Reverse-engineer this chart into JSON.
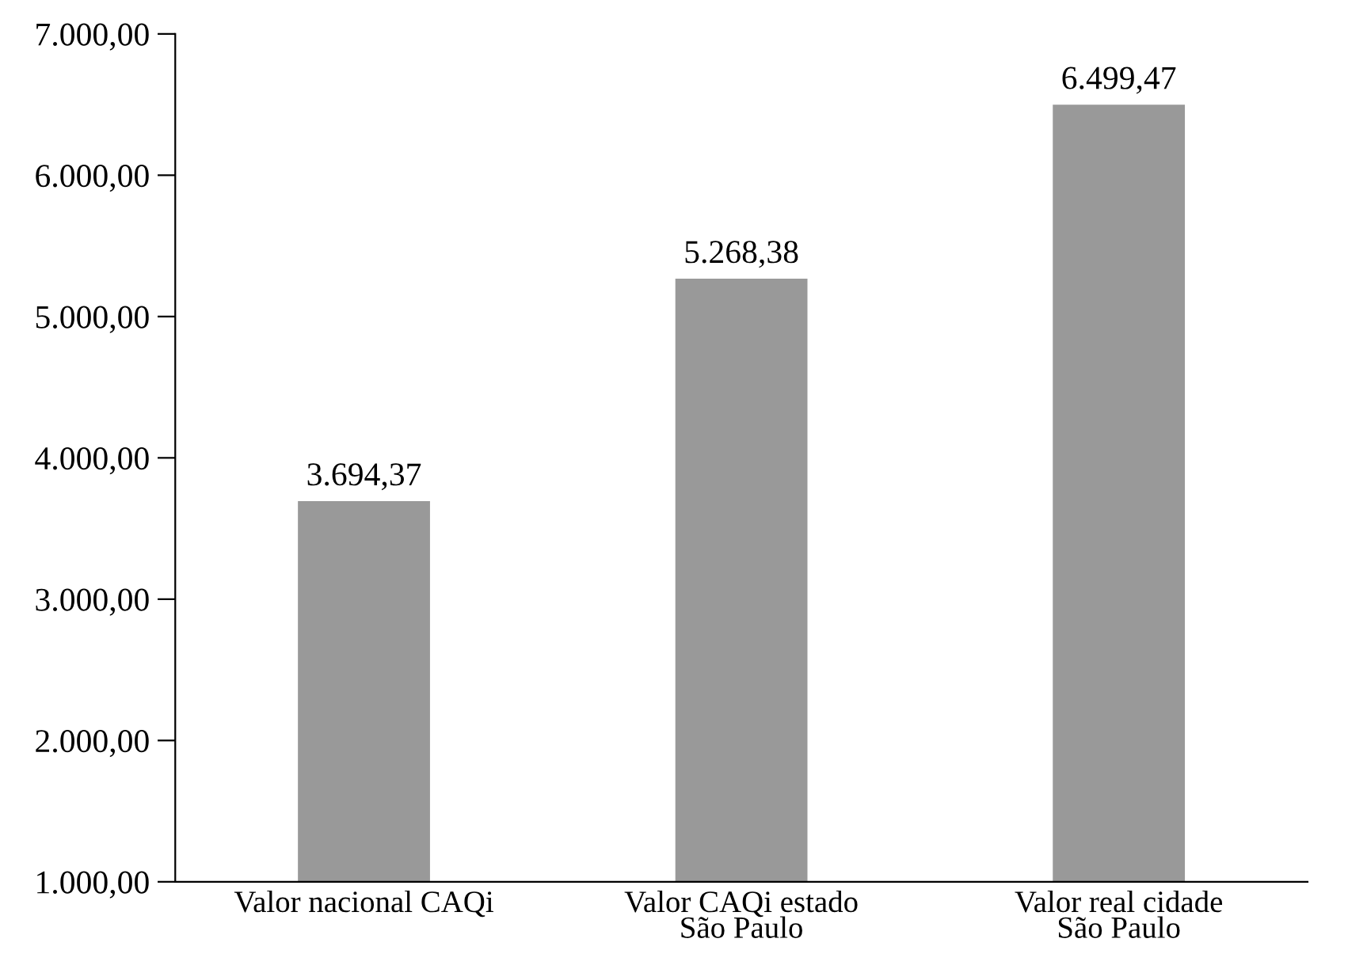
{
  "chart_data": {
    "type": "bar",
    "categories": [
      "Valor nacional CAQi",
      "Valor CAQi estado\nSão Paulo",
      "Valor real cidade\nSão Paulo"
    ],
    "values": [
      3694.37,
      5268.38,
      6499.47
    ],
    "color": "#999999",
    "value_labels": [
      "3.694,37",
      "5.268,38",
      "6.499,47"
    ],
    "ylim": [
      1000,
      7000
    ],
    "yticks": [
      {
        "value": 1000,
        "label": "1.000,00"
      },
      {
        "value": 2000,
        "label": "2.000,00"
      },
      {
        "value": 3000,
        "label": "3.000,00"
      },
      {
        "value": 4000,
        "label": "4.000,00"
      },
      {
        "value": 5000,
        "label": "5.000,00"
      },
      {
        "value": 6000,
        "label": "6.000,00"
      },
      {
        "value": 7000,
        "label": "7.000,00"
      }
    ],
    "grid": false
  }
}
